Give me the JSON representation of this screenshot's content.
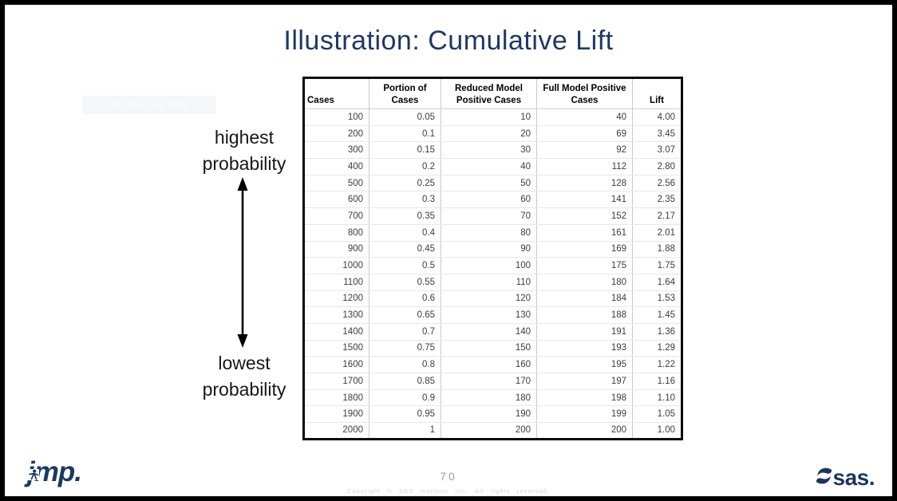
{
  "slide": {
    "title": "Illustration: Cumulative Lift",
    "snip_label": "Rectangular Snip",
    "page_number": "70",
    "copyright": "Copyright © SAS Institute Inc. All rights reserved."
  },
  "annotations": {
    "top_label": "highest probability",
    "bottom_label": "lowest probability"
  },
  "table": {
    "headers": [
      "Cases",
      "Portion of Cases",
      "Reduced Model Positive Cases",
      "Full Model Positive Cases",
      "Lift"
    ],
    "rows": [
      [
        "100",
        "0.05",
        "10",
        "40",
        "4.00"
      ],
      [
        "200",
        "0.1",
        "20",
        "69",
        "3.45"
      ],
      [
        "300",
        "0.15",
        "30",
        "92",
        "3.07"
      ],
      [
        "400",
        "0.2",
        "40",
        "112",
        "2.80"
      ],
      [
        "500",
        "0.25",
        "50",
        "128",
        "2.56"
      ],
      [
        "600",
        "0.3",
        "60",
        "141",
        "2.35"
      ],
      [
        "700",
        "0.35",
        "70",
        "152",
        "2.17"
      ],
      [
        "800",
        "0.4",
        "80",
        "161",
        "2.01"
      ],
      [
        "900",
        "0.45",
        "90",
        "169",
        "1.88"
      ],
      [
        "1000",
        "0.5",
        "100",
        "175",
        "1.75"
      ],
      [
        "1100",
        "0.55",
        "110",
        "180",
        "1.64"
      ],
      [
        "1200",
        "0.6",
        "120",
        "184",
        "1.53"
      ],
      [
        "1300",
        "0.65",
        "130",
        "188",
        "1.45"
      ],
      [
        "1400",
        "0.7",
        "140",
        "191",
        "1.36"
      ],
      [
        "1500",
        "0.75",
        "150",
        "193",
        "1.29"
      ],
      [
        "1600",
        "0.8",
        "160",
        "195",
        "1.22"
      ],
      [
        "1700",
        "0.85",
        "170",
        "197",
        "1.16"
      ],
      [
        "1800",
        "0.9",
        "180",
        "198",
        "1.10"
      ],
      [
        "1900",
        "0.95",
        "190",
        "199",
        "1.05"
      ],
      [
        "2000",
        "1",
        "200",
        "200",
        "1.00"
      ]
    ]
  },
  "footer": {
    "jmp_logo_text": "jmp.",
    "sas_logo_text": "sas."
  },
  "colors": {
    "title_navy": "#1F3864",
    "logo_navy": "#1B365D",
    "arrow_black": "#000000",
    "table_border_black": "#0B0B0B"
  }
}
